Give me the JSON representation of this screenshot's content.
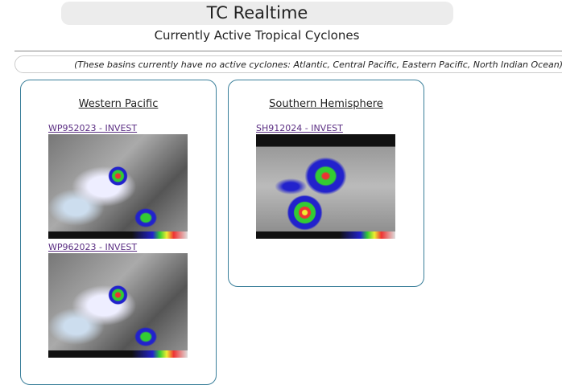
{
  "header": {
    "title": "TC Realtime",
    "subtitle": "Currently Active Tropical Cyclones"
  },
  "notice": "(These basins currently have no active cyclones: Atlantic, Central Pacific, Eastern Pacific, North Indian Ocean)",
  "basins": [
    {
      "title": "Western Pacific",
      "storms": [
        {
          "label": "WP952023 - INVEST"
        },
        {
          "label": "WP962023 - INVEST"
        }
      ]
    },
    {
      "title": "Southern Hemisphere",
      "storms": [
        {
          "label": "SH912024 - INVEST"
        }
      ]
    }
  ],
  "colors": {
    "panel_border": "#3a7f9a",
    "link": "#5a2d82",
    "title_bg": "#ececec"
  }
}
